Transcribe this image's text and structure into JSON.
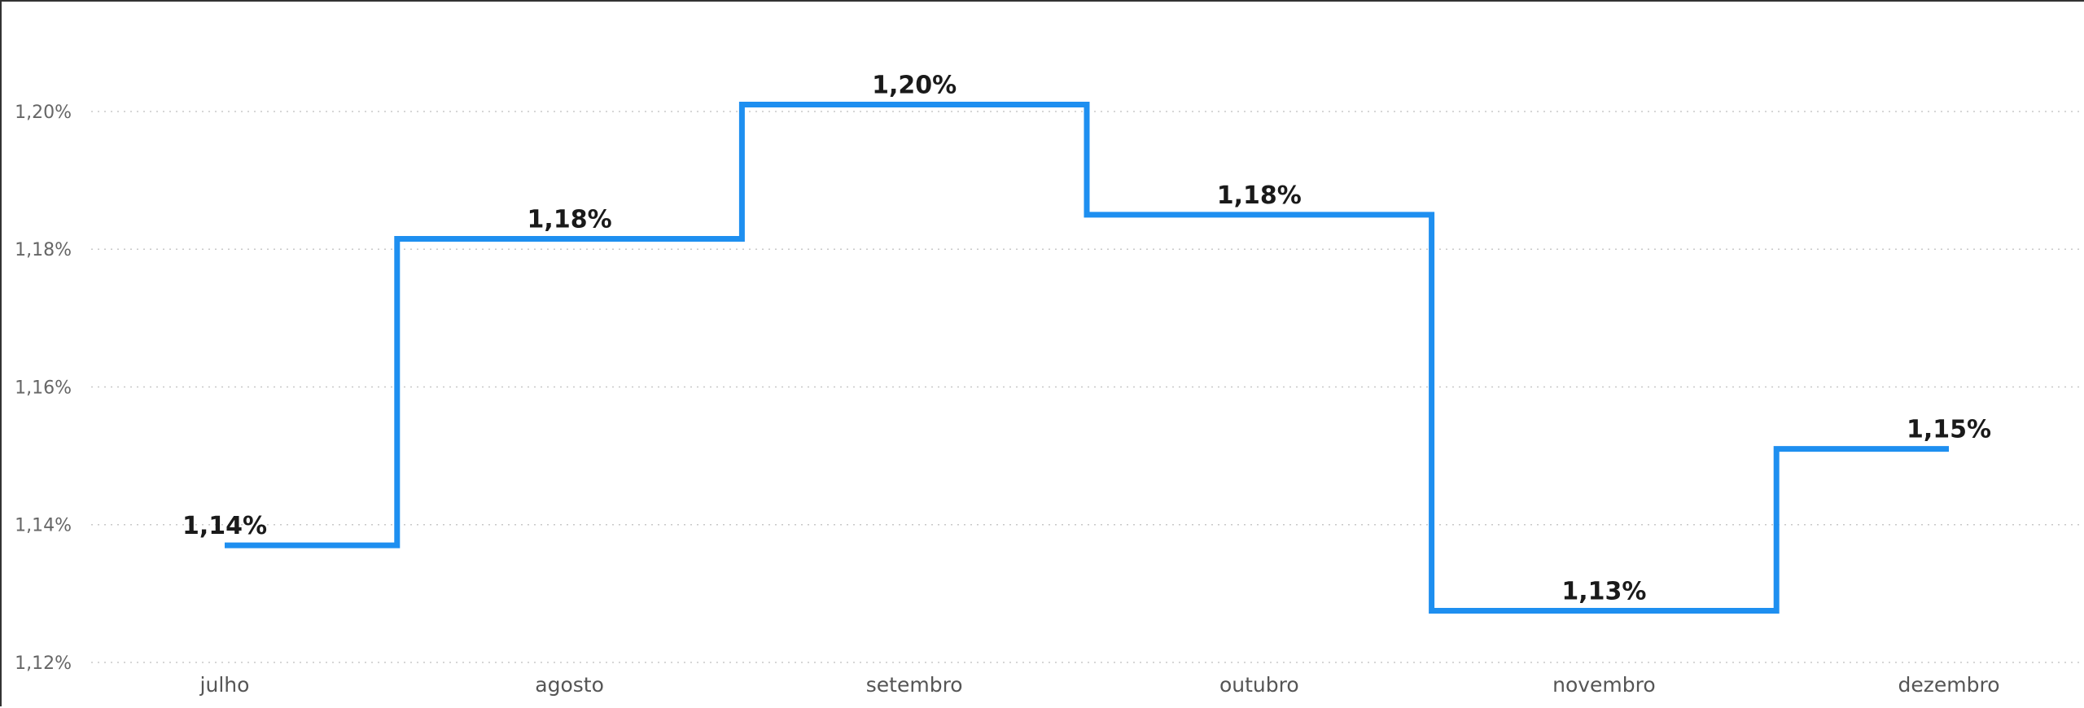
{
  "chart_data": {
    "type": "line",
    "step": true,
    "categories": [
      "julho",
      "agosto",
      "setembro",
      "outubro",
      "novembro",
      "dezembro"
    ],
    "values": [
      1.137,
      1.1815,
      1.201,
      1.185,
      1.1275,
      1.151
    ],
    "data_labels": [
      "1,14%",
      "1,18%",
      "1,20%",
      "1,18%",
      "1,13%",
      "1,15%"
    ],
    "y_ticks": [
      1.12,
      1.14,
      1.16,
      1.18,
      1.2
    ],
    "y_tick_labels": [
      "1,12%",
      "1,14%",
      "1,16%",
      "1,18%",
      "1,20%"
    ],
    "ylim": [
      1.12,
      1.2085
    ],
    "grid": true,
    "legend": "none",
    "series_color": "#1E8FF0"
  }
}
